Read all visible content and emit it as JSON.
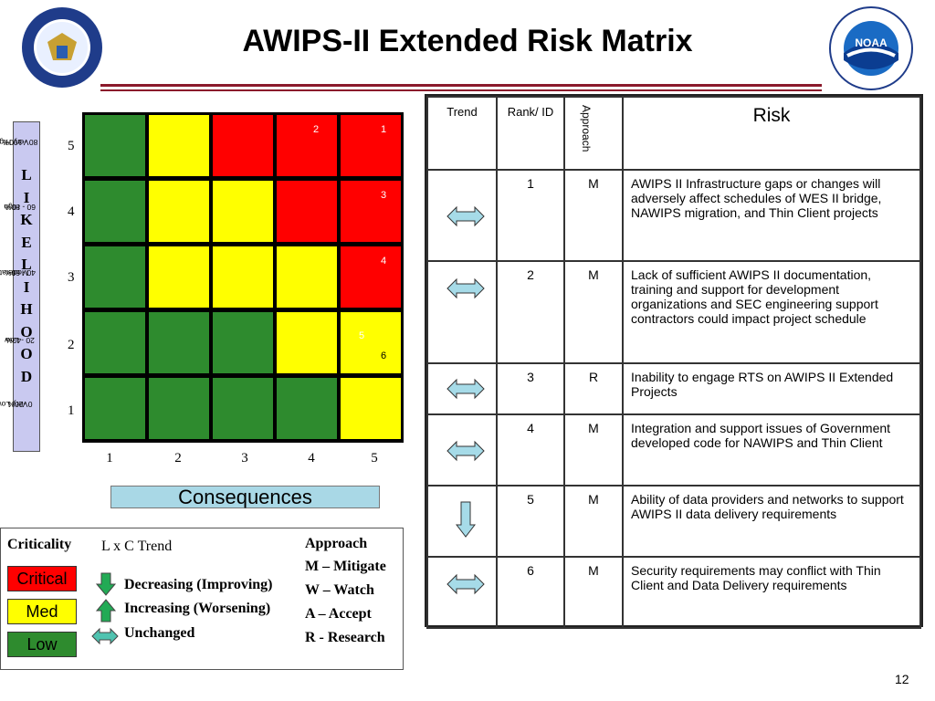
{
  "title": "AWIPS-II Extended Risk Matrix",
  "logos": {
    "left": "UNITED STATES OF AMERICA DEPARTMENT OF COMMERCE",
    "right": "NATIONAL OCEANIC AND ATMOSPHERIC ADMINISTRATION U.S. DEPARTMENT OF COMMERCE NOAA"
  },
  "likelihood": {
    "label_letters": [
      "L",
      "I",
      "K",
      "E",
      "L",
      "I",
      "H",
      "O",
      "O",
      "D"
    ],
    "rows": [
      {
        "level": "5",
        "name": "Very High",
        "range": "80 - 100%"
      },
      {
        "level": "4",
        "name": "High",
        "range": "60 - 80%"
      },
      {
        "level": "3",
        "name": "Moderate",
        "range": "40 - 60%"
      },
      {
        "level": "2",
        "name": "Low",
        "range": "20 -40%"
      },
      {
        "level": "1",
        "name": "Very Low",
        "range": "0 -20%"
      }
    ]
  },
  "consequences": {
    "label": "Consequences",
    "columns": [
      "1",
      "2",
      "3",
      "4",
      "5"
    ]
  },
  "matrix": {
    "colors": {
      "green": "#2e8b2e",
      "yellow": "#ffff00",
      "red": "#ff0000"
    },
    "cells": [
      [
        "G",
        "Y",
        "R",
        "R",
        "R"
      ],
      [
        "G",
        "Y",
        "Y",
        "R",
        "R"
      ],
      [
        "G",
        "Y",
        "Y",
        "Y",
        "R"
      ],
      [
        "G",
        "G",
        "G",
        "Y",
        "Y"
      ],
      [
        "G",
        "G",
        "G",
        "G",
        "Y"
      ]
    ],
    "markers": [
      {
        "id": "1",
        "row": 5,
        "col": 5
      },
      {
        "id": "2",
        "row": 5,
        "col": 4
      },
      {
        "id": "3",
        "row": 4,
        "col": 5
      },
      {
        "id": "4",
        "row": 3,
        "col": 5
      },
      {
        "id": "5",
        "row": 2,
        "col": 5
      },
      {
        "id": "6",
        "row": 2,
        "col": 5
      }
    ]
  },
  "legend": {
    "criticality_title": "Criticality",
    "criticality": [
      "Critical",
      "Med",
      "Low"
    ],
    "trend_title": "L x C Trend",
    "trends": [
      {
        "icon": "down-arrow-icon",
        "label": "Decreasing (Improving)"
      },
      {
        "icon": "up-arrow-icon",
        "label": "Increasing (Worsening)"
      },
      {
        "icon": "double-arrow-icon",
        "label": "Unchanged"
      }
    ],
    "approach_title": "Approach",
    "approaches": [
      "M – Mitigate",
      "W – Watch",
      "A – Accept",
      "R - Research"
    ]
  },
  "table": {
    "headers": {
      "trend": "Trend",
      "rank": "Rank/ ID",
      "approach": "Approach",
      "risk": "Risk"
    },
    "rows": [
      {
        "trend": "unchanged",
        "rank": "1",
        "approach": "M",
        "risk": "AWIPS II Infrastructure gaps or changes will adversely affect schedules of WES II bridge, NAWIPS migration, and Thin Client projects"
      },
      {
        "trend": "unchanged",
        "rank": "2",
        "approach": "M",
        "risk": "Lack of sufficient AWIPS II documentation, training and support for development organizations and SEC engineering support contractors could impact project schedule"
      },
      {
        "trend": "unchanged",
        "rank": "3",
        "approach": "R",
        "risk": "Inability to engage RTS on AWIPS II Extended Projects"
      },
      {
        "trend": "unchanged",
        "rank": "4",
        "approach": "M",
        "risk": "Integration and support issues of Government developed code for NAWIPS and Thin Client"
      },
      {
        "trend": "decreasing",
        "rank": "5",
        "approach": "M",
        "risk": "Ability of data providers and networks to support AWIPS II data delivery requirements"
      },
      {
        "trend": "unchanged",
        "rank": "6",
        "approach": "M",
        "risk": "Security requirements may conflict with Thin Client and Data Delivery requirements"
      }
    ]
  },
  "page_number": "12"
}
